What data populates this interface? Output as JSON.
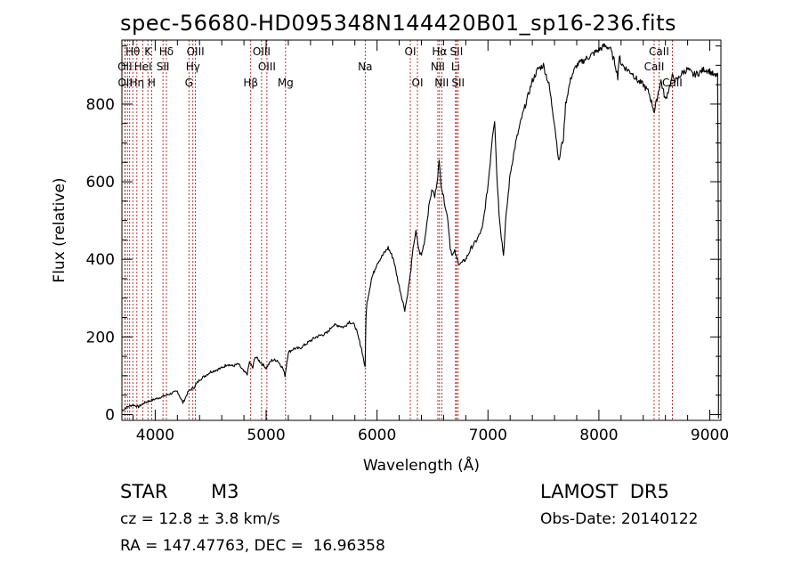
{
  "header": {
    "class": "STAR",
    "subclass": "M3",
    "survey": "LAMOST  DR5",
    "cz": "cz = 12.8 ± 3.8 km/s",
    "obs_date": "Obs-Date: 20140122",
    "radec": "RA = 147.47763, DEC =  16.96358"
  },
  "chart_data": {
    "type": "line",
    "title": "spec-56680-HD095348N144420B01_sp16-236.fits",
    "xlabel": "Wavelength (Å)",
    "ylabel": "Flux (relative)",
    "xlim": [
      3700,
      9100
    ],
    "ylim": [
      -15,
      965
    ],
    "xticks": [
      4000,
      5000,
      6000,
      7000,
      8000,
      9000
    ],
    "yticks": [
      0,
      200,
      400,
      600,
      800
    ],
    "grid": false,
    "colors": {
      "spectrum": "#000000",
      "line_markers": "#b00000",
      "axes": "#000000"
    },
    "series": [
      {
        "x": [
          3700,
          3750,
          3800,
          3850,
          3900,
          3950,
          4000,
          4050,
          4100,
          4150,
          4200,
          4250,
          4300,
          4350,
          4400,
          4450,
          4500,
          4550,
          4600,
          4650,
          4700,
          4750,
          4800,
          4830,
          4850,
          4880,
          4900,
          4950,
          5000,
          5050,
          5100,
          5150,
          5170,
          5200,
          5250,
          5300,
          5350,
          5400,
          5450,
          5500,
          5550,
          5600,
          5650,
          5700,
          5750,
          5800,
          5830,
          5860,
          5880,
          5893,
          5900,
          5910,
          5950,
          6000,
          6050,
          6100,
          6150,
          6170,
          6200,
          6250,
          6270,
          6300,
          6330,
          6350,
          6380,
          6400,
          6430,
          6460,
          6480,
          6500,
          6520,
          6540,
          6560,
          6580,
          6600,
          6620,
          6640,
          6660,
          6680,
          6700,
          6720,
          6740,
          6760,
          6800,
          6850,
          6900,
          6950,
          7000,
          7020,
          7040,
          7060,
          7080,
          7100,
          7120,
          7140,
          7160,
          7200,
          7250,
          7300,
          7350,
          7400,
          7450,
          7500,
          7550,
          7600,
          7620,
          7640,
          7660,
          7680,
          7700,
          7720,
          7750,
          7800,
          7850,
          7900,
          7950,
          8000,
          8050,
          8100,
          8150,
          8170,
          8180,
          8190,
          8200,
          8250,
          8300,
          8350,
          8400,
          8450,
          8500,
          8542,
          8560,
          8600,
          8662,
          8700,
          8750,
          8800,
          8850,
          8900,
          8950,
          9000,
          9050,
          9070
        ],
        "y": [
          10,
          20,
          25,
          20,
          30,
          35,
          40,
          45,
          50,
          55,
          60,
          30,
          60,
          70,
          90,
          100,
          110,
          115,
          120,
          130,
          125,
          130,
          110,
          105,
          135,
          120,
          150,
          135,
          120,
          140,
          140,
          120,
          100,
          160,
          170,
          170,
          180,
          190,
          200,
          205,
          210,
          230,
          230,
          225,
          240,
          230,
          200,
          170,
          140,
          120,
          250,
          290,
          350,
          390,
          410,
          430,
          400,
          370,
          330,
          270,
          300,
          360,
          440,
          470,
          420,
          410,
          450,
          520,
          560,
          580,
          560,
          600,
          650,
          590,
          560,
          530,
          500,
          430,
          410,
          420,
          400,
          390,
          390,
          400,
          430,
          450,
          480,
          590,
          650,
          720,
          760,
          620,
          520,
          460,
          410,
          500,
          620,
          700,
          760,
          810,
          860,
          890,
          900,
          850,
          750,
          700,
          650,
          690,
          710,
          800,
          830,
          870,
          900,
          910,
          920,
          930,
          940,
          950,
          945,
          900,
          870,
          910,
          920,
          905,
          890,
          880,
          860,
          850,
          830,
          780,
          840,
          860,
          810,
          870,
          860,
          880,
          890,
          875,
          880,
          890,
          885,
          870,
          880
        ]
      }
    ],
    "line_markers": [
      {
        "label": "Hθ",
        "x": 3798,
        "row": 0
      },
      {
        "label": "OII",
        "x": 3727,
        "row": 1
      },
      {
        "label": "OII",
        "x": 3729,
        "row": 2
      },
      {
        "label": "Hη",
        "x": 3835,
        "row": 2
      },
      {
        "label": "K",
        "x": 3934,
        "row": 0
      },
      {
        "label": "HeI",
        "x": 3889,
        "row": 1
      },
      {
        "label": "H",
        "x": 3968,
        "row": 2
      },
      {
        "label": "Hδ",
        "x": 4101,
        "row": 0
      },
      {
        "label": "SII",
        "x": 4070,
        "row": 1
      },
      {
        "label": "OIII",
        "x": 4363,
        "row": 0
      },
      {
        "label": "Hγ",
        "x": 4340,
        "row": 1
      },
      {
        "label": "G",
        "x": 4304,
        "row": 2
      },
      {
        "label": "OIII",
        "x": 4959,
        "row": 0
      },
      {
        "label": "OIII",
        "x": 5007,
        "row": 1
      },
      {
        "label": "Hβ",
        "x": 4861,
        "row": 2
      },
      {
        "label": "Mg",
        "x": 5175,
        "row": 2
      },
      {
        "label": "Na",
        "x": 5893,
        "row": 1
      },
      {
        "label": "OI",
        "x": 6300,
        "row": 0
      },
      {
        "label": "OI",
        "x": 6364,
        "row": 2
      },
      {
        "label": "Hα",
        "x": 6563,
        "row": 0
      },
      {
        "label": "SII",
        "x": 6716,
        "row": 0
      },
      {
        "label": "NII",
        "x": 6548,
        "row": 1
      },
      {
        "label": "Li",
        "x": 6708,
        "row": 1
      },
      {
        "label": "NII",
        "x": 6583,
        "row": 2
      },
      {
        "label": "SII",
        "x": 6731,
        "row": 2
      },
      {
        "label": "CaII",
        "x": 8542,
        "row": 0
      },
      {
        "label": "CaII",
        "x": 8498,
        "row": 1
      },
      {
        "label": "CaII",
        "x": 8662,
        "row": 2
      }
    ],
    "extra_marker_x": [
      3750,
      3770,
      3835,
      3889,
      3934,
      3968,
      4070,
      4101,
      4304,
      4340,
      4363,
      4861,
      4959,
      5007,
      5175,
      5893,
      6300,
      6364,
      6548,
      6563,
      6583,
      6708,
      6716,
      6731,
      8498,
      8542,
      8662
    ]
  }
}
